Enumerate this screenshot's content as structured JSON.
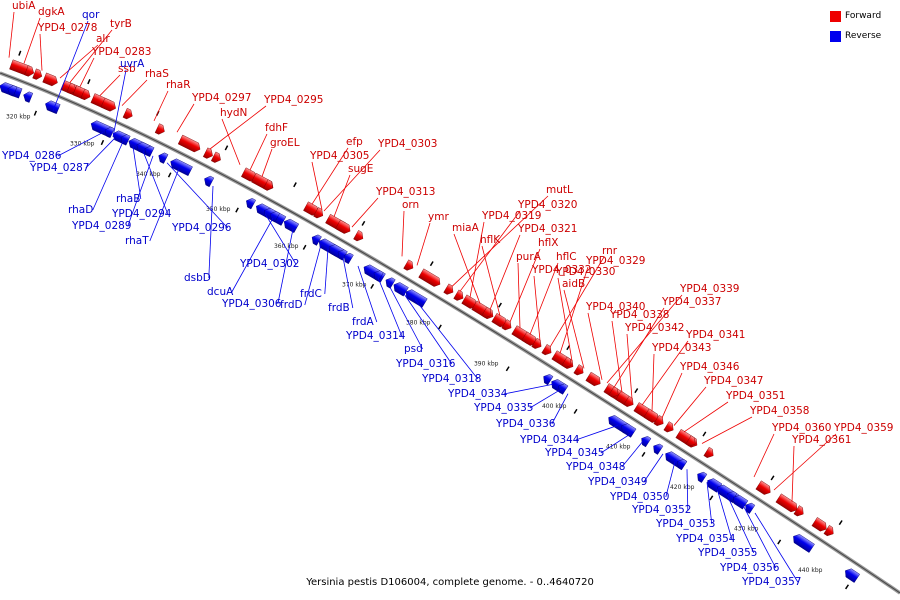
{
  "caption": "Yersinia pestis D106004, complete genome. - 0..4640720",
  "legend": [
    {
      "label": "Forward",
      "color": "#ee0000"
    },
    {
      "label": "Reverse",
      "color": "#0000ee"
    }
  ],
  "colors": {
    "forward": "#ee0000",
    "reverse": "#0000ee",
    "backbone": "#888888"
  },
  "ticks": [
    "320 kbp",
    "330 kbp",
    "340 kbp",
    "350 kbp",
    "360 kbp",
    "370 kbp",
    "380 kbp",
    "390 kbp",
    "400 kbp",
    "410 kbp",
    "420 kbp",
    "430 kbp",
    "440 kbp"
  ],
  "forward_labels": [
    "ubiA",
    "dgkA",
    "YPD4_0278",
    "alr",
    "tyrB",
    "YPD4_0283",
    "ssb",
    "rhaS",
    "rhaR",
    "YPD4_0297",
    "YPD4_0295",
    "hydN",
    "fdhF",
    "groEL",
    "efp",
    "YPD4_0303",
    "YPD4_0305",
    "sugE",
    "YPD4_0313",
    "orn",
    "ymr",
    "mutL",
    "YPD4_0320",
    "YPD4_0319",
    "miaA",
    "YPD4_0321",
    "hflK",
    "hflX",
    "purA",
    "hflC",
    "YPD4_0332",
    "rnr",
    "YPD4_0329",
    "YPD4_0330",
    "aidB",
    "YPD4_0340",
    "YPD4_0339",
    "YPD4_0337",
    "YPD4_0338",
    "YPD4_0342",
    "YPD4_0341",
    "YPD4_0343",
    "YPD4_0346",
    "YPD4_0347",
    "YPD4_0351",
    "YPD4_0358",
    "YPD4_0360",
    "YPD4_0359",
    "YPD4_0361"
  ],
  "reverse_labels": [
    "qor",
    "uvrA",
    "YPD4_0286",
    "YPD4_0287",
    "rhaD",
    "rhaB",
    "YPD4_0294",
    "YPD4_0289",
    "YPD4_0296",
    "rhaT",
    "dsbD",
    "YPD4_0302",
    "dcuA",
    "YPD4_0306",
    "frdD",
    "frdC",
    "frdB",
    "frdA",
    "YPD4_0314",
    "psd",
    "YPD4_0316",
    "YPD4_0318",
    "YPD4_0334",
    "YPD4_0335",
    "YPD4_0336",
    "YPD4_0344",
    "YPD4_0345",
    "YPD4_0348",
    "YPD4_0349",
    "YPD4_0350",
    "YPD4_0352",
    "YPD4_0353",
    "YPD4_0354",
    "YPD4_0355",
    "YPD4_0356",
    "YPD4_0357"
  ]
}
